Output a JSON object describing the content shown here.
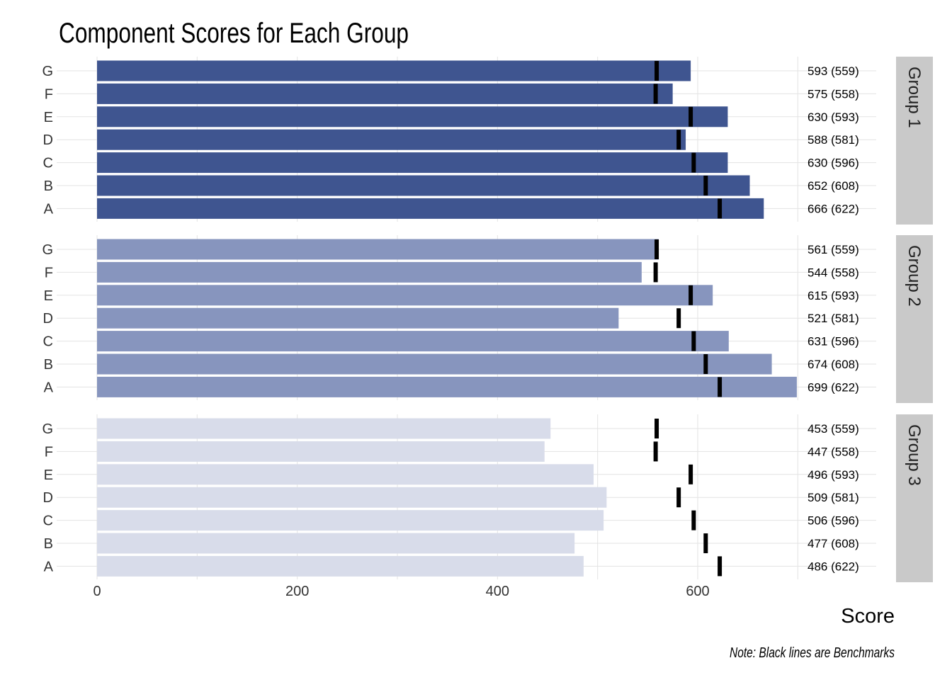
{
  "chart_data": {
    "type": "bar",
    "title": "Component Scores for Each Group",
    "xlabel": "Score",
    "note": "Note: Black lines are Benchmarks",
    "xlim": [
      0,
      700
    ],
    "xticks": [
      0,
      200,
      400,
      600
    ],
    "categories": [
      "G",
      "F",
      "E",
      "D",
      "C",
      "B",
      "A"
    ],
    "benchmarks": [
      559,
      558,
      593,
      581,
      596,
      608,
      622
    ],
    "groups": [
      {
        "name": "Group 1",
        "color": "#3f5590",
        "values": [
          593,
          575,
          630,
          588,
          630,
          652,
          666
        ],
        "labels": [
          "593 (559)",
          "575 (558)",
          "630 (593)",
          "588 (581)",
          "630 (596)",
          "652 (608)",
          "666 (622)"
        ]
      },
      {
        "name": "Group 2",
        "color": "#8795be",
        "values": [
          561,
          544,
          615,
          521,
          631,
          674,
          699
        ],
        "labels": [
          "561 (559)",
          "544 (558)",
          "615 (593)",
          "521 (581)",
          "631 (596)",
          "674 (608)",
          "699 (622)"
        ]
      },
      {
        "name": "Group 3",
        "color": "#d8dcea",
        "values": [
          453,
          447,
          496,
          509,
          506,
          477,
          486
        ],
        "labels": [
          "453 (559)",
          "447 (558)",
          "496 (593)",
          "509 (581)",
          "506 (596)",
          "477 (608)",
          "486 (622)"
        ]
      }
    ],
    "grid": true,
    "strip_color": "#c9c9c9"
  }
}
